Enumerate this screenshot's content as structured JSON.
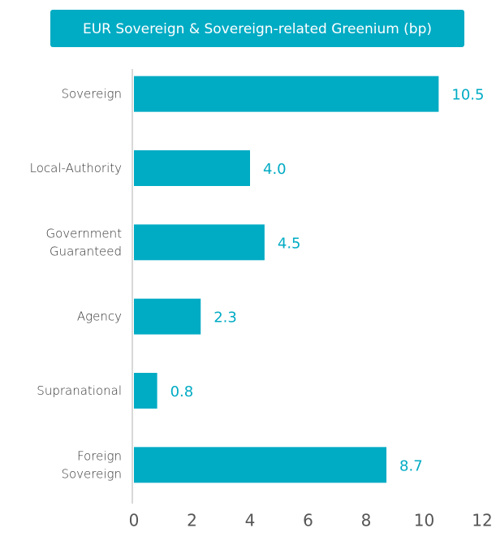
{
  "chart_data": {
    "type": "hbar",
    "title": "EUR Sovereign & Sovereign-related Greenium (bp)",
    "categories": [
      "Sovereign",
      "Local-Authority",
      "Government Guaranteed",
      "Agency",
      "Supranational",
      "Foreign Sovereign"
    ],
    "values": [
      10.5,
      4.0,
      4.5,
      2.3,
      0.8,
      8.7
    ],
    "value_labels": [
      "10.5",
      "4.0",
      "4.5",
      "2.3",
      "0.8",
      "8.7"
    ],
    "color": "#00abc4",
    "xlim": [
      0,
      12
    ],
    "xticks": [
      0,
      2,
      4,
      6,
      8,
      10,
      12
    ],
    "grid": false
  }
}
